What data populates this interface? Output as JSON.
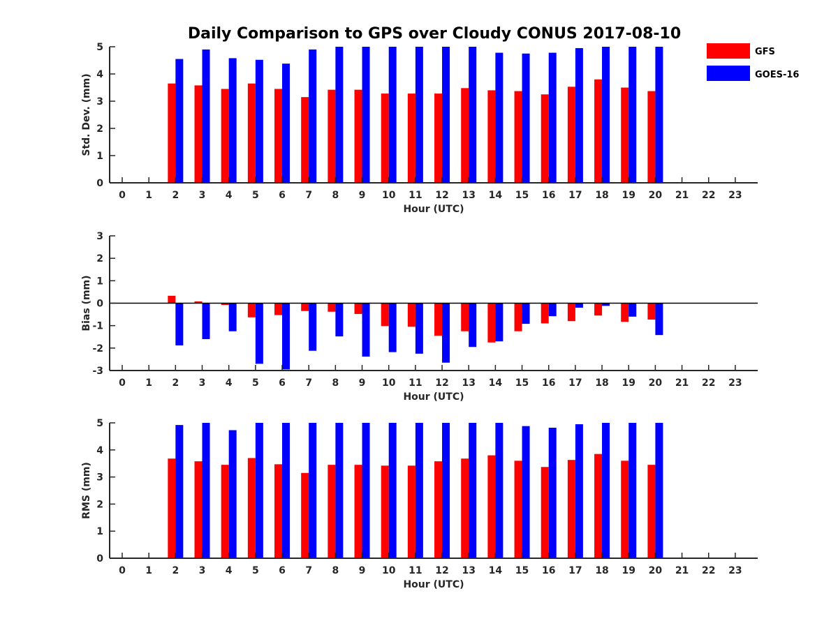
{
  "title": "Daily Comparison to GPS over Cloudy CONUS 2017-08-10",
  "legend": [
    {
      "name": "GFS",
      "color": "#ff0000"
    },
    {
      "name": "GOES-16",
      "color": "#0000ff"
    }
  ],
  "chart_data": [
    {
      "type": "bar",
      "title": "",
      "xlabel": "Hour (UTC)",
      "ylabel": "Std. Dev. (mm)",
      "ylim": [
        0,
        5
      ],
      "yticks": [
        0,
        1,
        2,
        3,
        4,
        5
      ],
      "categories": [
        "0",
        "1",
        "2",
        "3",
        "4",
        "5",
        "6",
        "7",
        "8",
        "9",
        "10",
        "11",
        "12",
        "13",
        "14",
        "15",
        "16",
        "17",
        "18",
        "19",
        "20",
        "21",
        "22",
        "23"
      ],
      "series": [
        {
          "name": "GFS",
          "color": "#ff0000",
          "values": [
            null,
            null,
            3.65,
            3.58,
            3.45,
            3.65,
            3.45,
            3.15,
            3.42,
            3.42,
            3.28,
            3.28,
            3.28,
            3.48,
            3.4,
            3.37,
            3.25,
            3.53,
            3.8,
            3.5,
            3.37,
            null,
            null,
            null
          ]
        },
        {
          "name": "GOES-16",
          "color": "#0000ff",
          "values": [
            null,
            null,
            4.55,
            4.9,
            4.58,
            4.52,
            4.38,
            4.9,
            5.0,
            5.0,
            5.0,
            5.0,
            5.0,
            5.0,
            4.78,
            4.75,
            4.78,
            4.95,
            5.0,
            5.0,
            5.0,
            null,
            null,
            null
          ]
        }
      ],
      "grid": false
    },
    {
      "type": "bar",
      "title": "",
      "xlabel": "Hour (UTC)",
      "ylabel": "Bias (mm)",
      "ylim": [
        -3,
        3
      ],
      "yticks": [
        -3,
        -2,
        -1,
        0,
        1,
        2,
        3
      ],
      "categories": [
        "0",
        "1",
        "2",
        "3",
        "4",
        "5",
        "6",
        "7",
        "8",
        "9",
        "10",
        "11",
        "12",
        "13",
        "14",
        "15",
        "16",
        "17",
        "18",
        "19",
        "20",
        "21",
        "22",
        "23"
      ],
      "series": [
        {
          "name": "GFS",
          "color": "#ff0000",
          "values": [
            null,
            null,
            0.33,
            0.08,
            -0.08,
            -0.63,
            -0.53,
            -0.35,
            -0.38,
            -0.48,
            -1.02,
            -1.05,
            -1.45,
            -1.25,
            -1.75,
            -1.25,
            -0.9,
            -0.8,
            -0.55,
            -0.83,
            -0.73,
            null,
            null,
            null
          ]
        },
        {
          "name": "GOES-16",
          "color": "#0000ff",
          "values": [
            null,
            null,
            -1.88,
            -1.6,
            -1.25,
            -2.7,
            -2.95,
            -2.12,
            -1.48,
            -2.38,
            -2.18,
            -2.25,
            -2.65,
            -1.95,
            -1.7,
            -0.92,
            -0.58,
            -0.2,
            -0.12,
            -0.6,
            -1.42,
            null,
            null,
            null
          ]
        }
      ],
      "zero_line": true,
      "grid": false
    },
    {
      "type": "bar",
      "title": "",
      "xlabel": "Hour (UTC)",
      "ylabel": "RMS (mm)",
      "ylim": [
        0,
        5
      ],
      "yticks": [
        0,
        1,
        2,
        3,
        4,
        5
      ],
      "categories": [
        "0",
        "1",
        "2",
        "3",
        "4",
        "5",
        "6",
        "7",
        "8",
        "9",
        "10",
        "11",
        "12",
        "13",
        "14",
        "15",
        "16",
        "17",
        "18",
        "19",
        "20",
        "21",
        "22",
        "23"
      ],
      "series": [
        {
          "name": "GFS",
          "color": "#ff0000",
          "values": [
            null,
            null,
            3.68,
            3.58,
            3.45,
            3.7,
            3.47,
            3.15,
            3.45,
            3.45,
            3.42,
            3.42,
            3.58,
            3.68,
            3.8,
            3.6,
            3.37,
            3.63,
            3.85,
            3.6,
            3.45,
            null,
            null,
            null
          ]
        },
        {
          "name": "GOES-16",
          "color": "#0000ff",
          "values": [
            null,
            null,
            4.92,
            5.0,
            4.73,
            5.0,
            5.0,
            5.0,
            5.0,
            5.0,
            5.0,
            5.0,
            5.0,
            5.0,
            5.0,
            4.88,
            4.82,
            4.95,
            5.0,
            5.0,
            5.0,
            null,
            null,
            null
          ]
        }
      ],
      "grid": false
    }
  ]
}
